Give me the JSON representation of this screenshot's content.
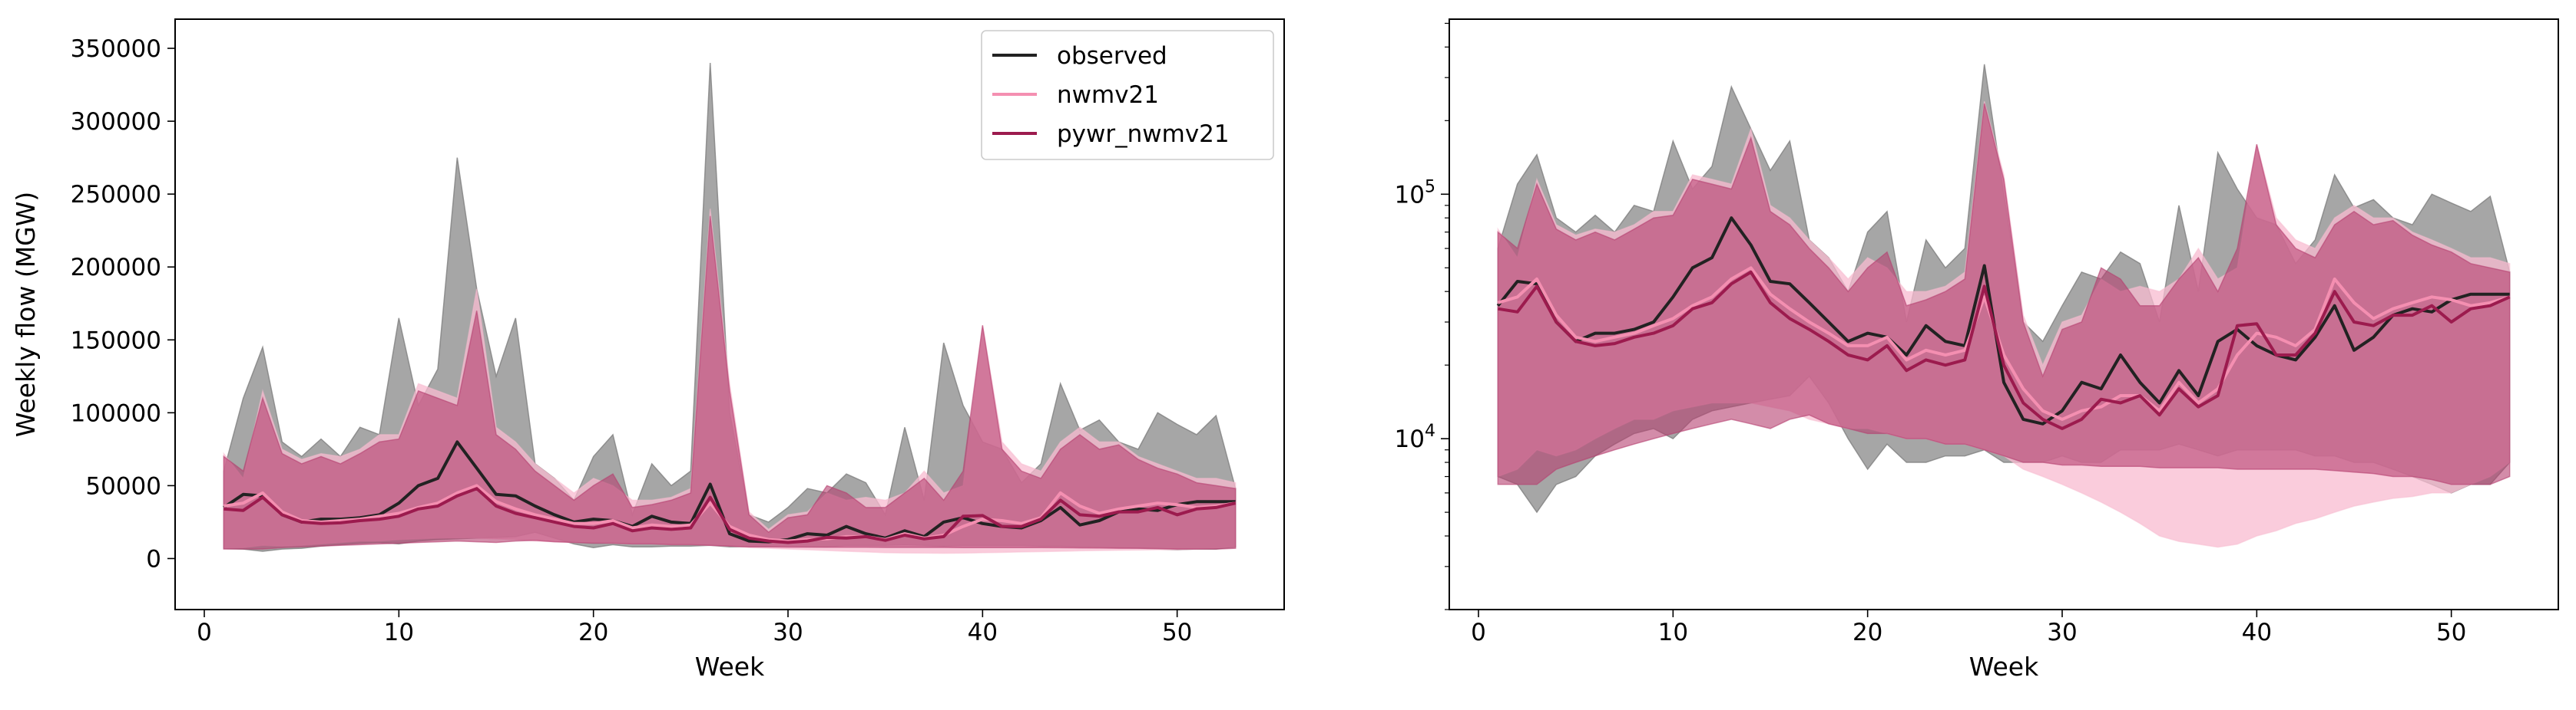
{
  "colors": {
    "observed": "#222222",
    "observed_band": "#808080",
    "nwmv21": "#f48fb1",
    "nwmv21_band": "#f8bbd0",
    "pywr_nwmv21": "#9c1b4e",
    "pywr_nwmv21_band": "#b5406f"
  },
  "chart_data": [
    {
      "type": "line",
      "scale": "linear",
      "xlabel": "Week",
      "ylabel": "Weekly flow (MGW)",
      "xlim": [
        -1.5,
        55.5
      ],
      "ylim": [
        -35000,
        370000
      ],
      "xticks": [
        0,
        10,
        20,
        30,
        40,
        50
      ],
      "yticks": [
        0,
        50000,
        100000,
        150000,
        200000,
        250000,
        300000,
        350000
      ],
      "ytick_labels": [
        "0",
        "50000",
        "100000",
        "150000",
        "200000",
        "250000",
        "300000",
        "350000"
      ],
      "legend": {
        "position": "top-right",
        "entries": [
          "observed",
          "nwmv21",
          "pywr_nwmv21"
        ]
      }
    },
    {
      "type": "line",
      "scale": "log",
      "xlabel": "Week",
      "ylabel": "",
      "xlim": [
        -1.5,
        55.5
      ],
      "ylim": [
        2000,
        520000
      ],
      "xticks": [
        0,
        10,
        20,
        30,
        40,
        50
      ],
      "major_ticks": [
        10000,
        100000
      ],
      "ytick_labels": [
        {
          "base": "10",
          "exp": "4"
        },
        {
          "base": "10",
          "exp": "5"
        }
      ],
      "legend": null
    }
  ],
  "series": {
    "x": [
      1,
      2,
      3,
      4,
      5,
      6,
      7,
      8,
      9,
      10,
      11,
      12,
      13,
      14,
      15,
      16,
      17,
      18,
      19,
      20,
      21,
      22,
      23,
      24,
      25,
      26,
      27,
      28,
      29,
      30,
      31,
      32,
      33,
      34,
      35,
      36,
      37,
      38,
      39,
      40,
      41,
      42,
      43,
      44,
      45,
      46,
      47,
      48,
      49,
      50,
      51,
      52,
      53
    ],
    "observed": {
      "name": "observed",
      "median": [
        35000,
        44000,
        43000,
        30000,
        25000,
        27000,
        27000,
        28000,
        30000,
        38000,
        50000,
        55000,
        80000,
        62000,
        44000,
        43000,
        36000,
        30000,
        25000,
        27000,
        26000,
        22000,
        29000,
        25000,
        24000,
        51000,
        17000,
        12000,
        11500,
        13000,
        17000,
        16000,
        22000,
        17000,
        14000,
        19000,
        15000,
        25000,
        28000,
        24000,
        22000,
        21000,
        26000,
        35000,
        23000,
        26000,
        32000,
        34000,
        33000,
        37000,
        39000,
        39000,
        39000
      ],
      "max": [
        60000,
        110000,
        145000,
        80000,
        70000,
        82000,
        70000,
        90000,
        85000,
        165000,
        105000,
        130000,
        275000,
        185000,
        125000,
        165000,
        65000,
        55000,
        40000,
        70000,
        85000,
        30000,
        65000,
        50000,
        60000,
        340000,
        100000,
        30000,
        25000,
        35000,
        48000,
        45000,
        58000,
        52000,
        30000,
        90000,
        40000,
        148000,
        105000,
        80000,
        75000,
        52000,
        65000,
        120000,
        88000,
        95000,
        80000,
        75000,
        100000,
        92000,
        85000,
        98000,
        48000
      ],
      "min": [
        7000,
        6500,
        5000,
        6500,
        7000,
        8500,
        9500,
        10500,
        11000,
        10000,
        12000,
        13000,
        13500,
        14000,
        14500,
        15000,
        18000,
        14000,
        10000,
        7500,
        9500,
        8000,
        8000,
        8500,
        8500,
        9000,
        8000,
        8000,
        8000,
        8500,
        8000,
        8000,
        9000,
        9000,
        9000,
        9500,
        9000,
        8500,
        9000,
        9000,
        9000,
        9000,
        8500,
        8500,
        8000,
        8000,
        7500,
        7000,
        6500,
        6000,
        6500,
        6500,
        8000
      ]
    },
    "nwmv21": {
      "name": "nwmv21",
      "median": [
        36000,
        38000,
        45000,
        32000,
        26000,
        25000,
        26000,
        27000,
        29000,
        31000,
        35000,
        38000,
        45000,
        50000,
        39000,
        34000,
        30000,
        27000,
        24000,
        24000,
        26000,
        21000,
        23000,
        22000,
        23000,
        38000,
        22000,
        16000,
        13000,
        12000,
        13000,
        13500,
        15000,
        15000,
        13000,
        17000,
        14000,
        16000,
        22000,
        27000,
        26000,
        24000,
        28000,
        45000,
        36000,
        31000,
        34000,
        36000,
        38000,
        37000,
        35000,
        36000,
        38000
      ],
      "max": [
        72000,
        55000,
        115000,
        75000,
        68000,
        72000,
        70000,
        75000,
        85000,
        85000,
        120000,
        115000,
        110000,
        185000,
        90000,
        80000,
        65000,
        55000,
        45000,
        55000,
        50000,
        40000,
        40000,
        42000,
        48000,
        240000,
        120000,
        32000,
        20000,
        30000,
        32000,
        45000,
        40000,
        42000,
        40000,
        45000,
        60000,
        45000,
        50000,
        160000,
        80000,
        65000,
        60000,
        80000,
        90000,
        80000,
        80000,
        70000,
        65000,
        60000,
        55000,
        55000,
        52000
      ],
      "min": [
        7000,
        7500,
        9000,
        8500,
        9000,
        10000,
        11000,
        12000,
        12000,
        13000,
        13500,
        14000,
        14000,
        14000,
        13500,
        13000,
        12000,
        11500,
        11000,
        11000,
        10500,
        10000,
        10000,
        9500,
        9500,
        9000,
        8500,
        7500,
        7000,
        6500,
        6000,
        5500,
        5000,
        4500,
        4000,
        3800,
        3700,
        3600,
        3700,
        4000,
        4200,
        4500,
        4700,
        5000,
        5300,
        5500,
        5700,
        5800,
        6000,
        6000,
        6500,
        7000,
        8000
      ]
    },
    "pywr_nwmv21": {
      "name": "pywr_nwmv21",
      "median": [
        34000,
        33000,
        42000,
        30000,
        25000,
        24000,
        24500,
        26000,
        27000,
        29000,
        34000,
        36000,
        43000,
        48000,
        36000,
        31000,
        28000,
        25000,
        22000,
        21000,
        24000,
        19000,
        21000,
        20000,
        21000,
        42000,
        20000,
        14000,
        12000,
        11000,
        12000,
        14500,
        14000,
        15000,
        12500,
        16000,
        13500,
        15000,
        29000,
        29500,
        22000,
        22000,
        27000,
        40000,
        30000,
        29000,
        32000,
        32000,
        35000,
        30000,
        34000,
        35000,
        38000
      ],
      "max": [
        70000,
        60000,
        110000,
        72000,
        65000,
        70000,
        65000,
        72000,
        80000,
        82000,
        115000,
        110000,
        105000,
        170000,
        85000,
        75000,
        60000,
        50000,
        40000,
        50000,
        58000,
        35000,
        37000,
        40000,
        45000,
        235000,
        115000,
        30000,
        18000,
        28000,
        30000,
        50000,
        45000,
        35000,
        35000,
        45000,
        55000,
        40000,
        60000,
        160000,
        75000,
        60000,
        55000,
        75000,
        85000,
        75000,
        78000,
        68000,
        62000,
        58000,
        52000,
        50000,
        48000
      ],
      "min": [
        6500,
        6500,
        6500,
        7500,
        8000,
        8500,
        9000,
        9500,
        10000,
        10500,
        11000,
        11500,
        12000,
        11500,
        11000,
        12000,
        12500,
        11500,
        11000,
        10500,
        10500,
        10000,
        10000,
        9500,
        9500,
        9000,
        8500,
        8000,
        8000,
        7800,
        7800,
        7700,
        7700,
        7700,
        7600,
        7600,
        7600,
        7600,
        7500,
        7500,
        7500,
        7500,
        7500,
        7400,
        7300,
        7200,
        7000,
        7000,
        6800,
        6500,
        6500,
        6500,
        7000
      ]
    }
  }
}
